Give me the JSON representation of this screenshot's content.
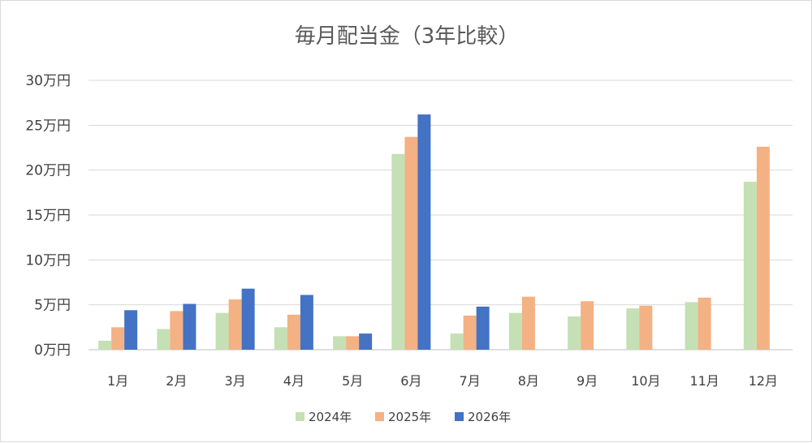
{
  "chart_data": {
    "type": "bar",
    "title": "毎月配当金（3年比較）",
    "xlabel": "",
    "ylabel": "",
    "unit": "万円",
    "ylim": [
      0,
      30
    ],
    "yticks": [
      "0万円",
      "5万円",
      "10万円",
      "15万円",
      "20万円",
      "25万円",
      "30万円"
    ],
    "categories": [
      "1月",
      "2月",
      "3月",
      "4月",
      "5月",
      "6月",
      "7月",
      "8月",
      "9月",
      "10月",
      "11月",
      "12月"
    ],
    "series": [
      {
        "name": "2024年",
        "color": "#c5e0b4",
        "values": [
          1.0,
          2.3,
          4.1,
          2.5,
          1.5,
          21.8,
          1.8,
          4.1,
          3.7,
          4.6,
          5.3,
          18.7
        ]
      },
      {
        "name": "2025年",
        "color": "#f4b183",
        "values": [
          2.5,
          4.3,
          5.6,
          3.9,
          1.5,
          23.7,
          3.8,
          5.9,
          5.4,
          4.9,
          5.8,
          22.6
        ]
      },
      {
        "name": "2026年",
        "color": "#4472c4",
        "values": [
          4.4,
          5.1,
          6.8,
          6.1,
          1.8,
          26.2,
          4.8,
          null,
          null,
          null,
          null,
          null
        ]
      }
    ],
    "grid": true,
    "legend": "bottom"
  }
}
